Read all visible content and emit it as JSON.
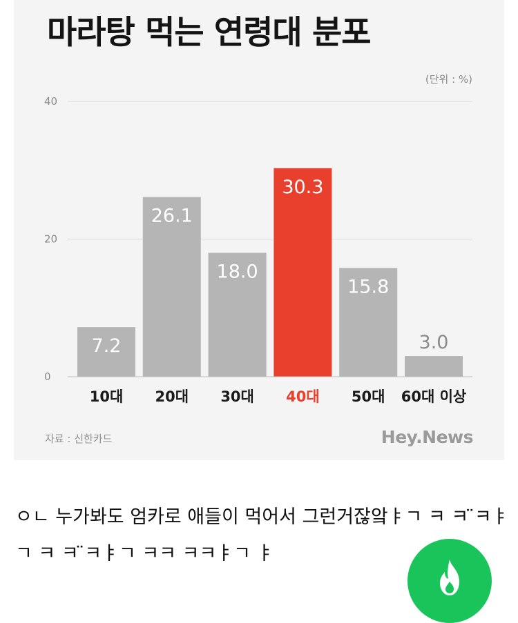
{
  "chart_data": {
    "type": "bar",
    "title": "마라탕 먹는 연령대 분포",
    "unit_label": "(단위 : %)",
    "categories": [
      "10대",
      "20대",
      "30대",
      "40대",
      "50대",
      "60대 이상"
    ],
    "values": [
      7.2,
      26.1,
      18.0,
      30.3,
      15.8,
      3.0
    ],
    "value_labels": [
      "7.2",
      "26.1",
      "18.0",
      "30.3",
      "15.8",
      "3.0"
    ],
    "highlight_index": 3,
    "y_ticks": [
      "0",
      "20",
      "40"
    ],
    "ylim": [
      0,
      40
    ],
    "grid": true,
    "colors": {
      "bar": "#b5b5b5",
      "highlight": "#e8402c",
      "category_text": "#1a1a1a",
      "highlight_text": "#e8402c"
    }
  },
  "source_note": "자료 : 신한카드",
  "brand": "Hey.News",
  "comment": {
    "text": "ㅇㄴ 누가봐도 엄카로 애들이 먹어서 그런거잖앜ㅑㄱ ㅋ ㅋ ̈ㅋㅑㄱ ㅋ ㅋ ̈ㅋㅑㄱ ㅋㅋ ㅋㅋㅑㄱ ㅑ"
  },
  "fab": {
    "icon": "flame-icon",
    "color": "#19c45b"
  }
}
